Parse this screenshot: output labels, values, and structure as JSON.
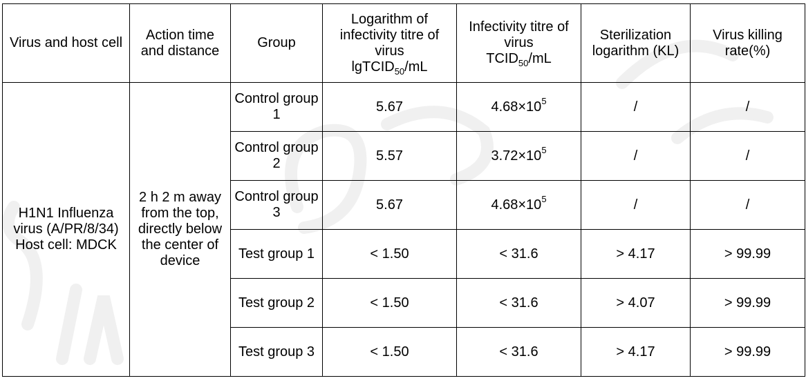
{
  "top_strip": "",
  "headers": {
    "virus_host": "Virus and host cell",
    "action": "Action time and distance",
    "group": "Group",
    "log_titre_line1": "Logarithm of infectivity titre of virus",
    "log_titre_unit_a": "lgTCID",
    "log_titre_unit_sub": "50",
    "log_titre_unit_b": "/mL",
    "titre_line1": "Infectivity titre of virus",
    "titre_unit_a": "TCID",
    "titre_unit_sub": "50",
    "titre_unit_b": "/mL",
    "kl": "Sterilization logarithm (KL)",
    "kill_rate": "Virus killing rate(%)"
  },
  "virus_host_cell": "H1N1 Influenza virus (A/PR/8/34) Host cell: MDCK",
  "action_cell": "2 h 2 m away from the top, directly below the center of device",
  "rows": [
    {
      "group": "Control group 1",
      "log_titre": "5.67",
      "titre_mant": "4.68×10",
      "titre_exp": "5",
      "kl": "/",
      "kill": "/"
    },
    {
      "group": "Control group 2",
      "log_titre": "5.57",
      "titre_mant": "3.72×10",
      "titre_exp": "5",
      "kl": "/",
      "kill": "/"
    },
    {
      "group": "Control group 3",
      "log_titre": "5.67",
      "titre_mant": "4.68×10",
      "titre_exp": "5",
      "kl": "/",
      "kill": "/"
    },
    {
      "group": "Test group 1",
      "log_titre": "< 1.50",
      "titre_mant": "< 31.6",
      "titre_exp": "",
      "kl": "> 4.17",
      "kill": "> 99.99"
    },
    {
      "group": "Test group 2",
      "log_titre": "< 1.50",
      "titre_mant": "< 31.6",
      "titre_exp": "",
      "kl": "> 4.07",
      "kill": "> 99.99"
    },
    {
      "group": "Test group 3",
      "log_titre": "< 1.50",
      "titre_mant": "< 31.6",
      "titre_exp": "",
      "kl": "> 4.17",
      "kill": "> 99.99"
    }
  ]
}
